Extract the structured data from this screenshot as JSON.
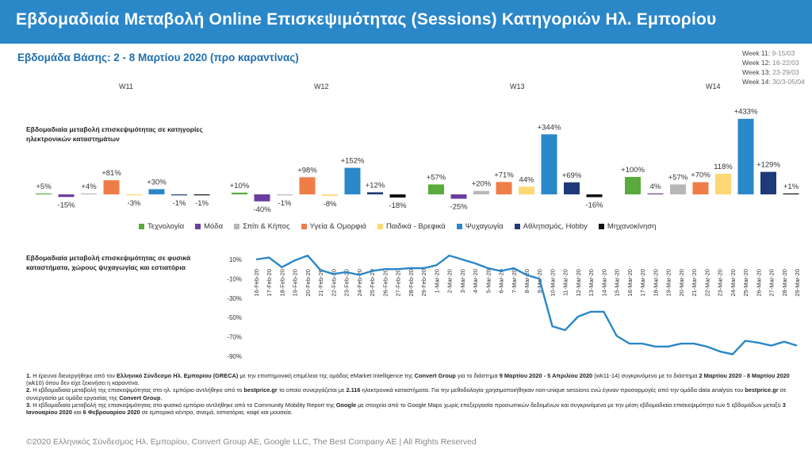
{
  "header": {
    "title": "Εβδομαδιαία Μεταβολή Online Επισκεψιμότητας (Sessions) Κατηγοριών Ηλ. Εμπορίου"
  },
  "base_week": "Εβδομάδα Βάσης: 2 - 8 Μαρτίου 2020 (προ καραντίνας)",
  "week_legend": [
    {
      "week": "Week 11:",
      "dates": "9-15/03"
    },
    {
      "week": "Week 12:",
      "dates": "16-22/03"
    },
    {
      "week": "Week 13:",
      "dates": "23-29/03"
    },
    {
      "week": "Week 14:",
      "dates": "30/3-05/04"
    }
  ],
  "colors": {
    "header_bg": "#2a87c8",
    "line": "#2a87c8"
  },
  "chart_data": [
    {
      "type": "bar",
      "title": "Εβδομαδιαία μεταβολή επισκεψιμότητας σε κατηγορίες ηλεκτρονικών καταστημάτων",
      "groups": [
        "W11",
        "W12",
        "W13",
        "W14"
      ],
      "series": [
        {
          "name": "Τεχνολογία",
          "color": "#5aaa3c",
          "values": [
            5,
            10,
            57,
            100
          ],
          "labels": [
            "+5%",
            "+10%",
            "+57%",
            "+100%"
          ]
        },
        {
          "name": "Μόδα",
          "color": "#6a3da0",
          "values": [
            -15,
            -40,
            -25,
            4
          ],
          "labels": [
            "-15%",
            "-40%",
            "-25%",
            "4%"
          ]
        },
        {
          "name": "Σπίτι & Κήπος",
          "color": "#b7b7b7",
          "values": [
            4,
            -1,
            20,
            57
          ],
          "labels": [
            "+4%",
            "-1%",
            "+20%",
            "+57%"
          ]
        },
        {
          "name": "Υγεία & Ομορφιά",
          "color": "#ef7d47",
          "values": [
            81,
            98,
            71,
            70
          ],
          "labels": [
            "+81%",
            "+98%",
            "+71%",
            "+70%"
          ]
        },
        {
          "name": "Παιδικά - Βρεφικά",
          "color": "#fdd773",
          "values": [
            -3,
            -8,
            44,
            118
          ],
          "labels": [
            "-3%",
            "-8%",
            "44%",
            "118%"
          ]
        },
        {
          "name": "Ψυχαγωγία",
          "color": "#2a87c8",
          "values": [
            30,
            152,
            344,
            433
          ],
          "labels": [
            "+30%",
            "+152%",
            "+344%",
            "+433%"
          ]
        },
        {
          "name": "Αθλητισμός, Hobby",
          "color": "#1f3a78",
          "values": [
            -1,
            12,
            69,
            129
          ],
          "labels": [
            "-1%",
            "+12%",
            "+69%",
            "+129%"
          ]
        },
        {
          "name": "Μηχανοκίνηση",
          "color": "#111111",
          "values": [
            -1,
            -18,
            -16,
            1
          ],
          "labels": [
            "-1%",
            "-18%",
            "-16%",
            "+1%"
          ]
        }
      ]
    },
    {
      "type": "line",
      "title": "Εβδομαδιαία μεταβολή επισκεψιμότητας σε φυσικά καταστήματα, χώρους ψυχαγωγίας και εστιατόρια",
      "x": [
        "16-Feb-20",
        "17-Feb-20",
        "18-Feb-20",
        "19-Feb-20",
        "20-Feb-20",
        "21-Feb-20",
        "22-Feb-20",
        "23-Feb-20",
        "24-Feb-20",
        "25-Feb-20",
        "26-Feb-20",
        "27-Feb-20",
        "28-Feb-20",
        "29-Feb-20",
        "1-Mar-20",
        "2-Mar-20",
        "3-Mar-20",
        "4-Mar-20",
        "5-Mar-20",
        "6-Mar-20",
        "7-Mar-20",
        "8-Mar-20",
        "9-Mar-20",
        "10-Mar-20",
        "11-Mar-20",
        "12-Mar-20",
        "13-Mar-20",
        "14-Mar-20",
        "15-Mar-20",
        "16-Mar-20",
        "17-Mar-20",
        "18-Mar-20",
        "19-Mar-20",
        "20-Mar-20",
        "21-Mar-20",
        "22-Mar-20",
        "23-Mar-20",
        "24-Mar-20",
        "25-Mar-20",
        "26-Mar-20",
        "27-Mar-20",
        "28-Mar-20",
        "29-Mar-20"
      ],
      "y": [
        10,
        12,
        2,
        9,
        14,
        -1,
        -5,
        -3,
        -6,
        -2,
        0,
        0,
        1,
        1,
        4,
        14,
        10,
        6,
        1,
        -2,
        1,
        -6,
        -10,
        -59,
        -63,
        -49,
        -44,
        -44,
        -69,
        -77,
        -77,
        -80,
        -80,
        -77,
        -77,
        -80,
        -85,
        -88,
        -74,
        -76,
        -79,
        -75,
        -79
      ],
      "yticks": [
        10,
        -10,
        -30,
        -50,
        -70,
        -90
      ],
      "ytick_labels": [
        "10%",
        "-10%",
        "-30%",
        "-50%",
        "-70%",
        "-90%"
      ],
      "ylim": [
        -95,
        15
      ]
    }
  ],
  "notes": [
    {
      "number": "1.",
      "parts": [
        {
          "t": " Η έρευνα διενεργήθηκε από τον "
        },
        {
          "b": "Ελληνικό Σύνδεσμο Ηλ. Εμπορίου (GRECA)"
        },
        {
          "t": " με την επιστημονική επιμέλεια της ομάδας eMarket Intelligence της "
        },
        {
          "b": "Convert Group"
        },
        {
          "t": " για το διάστημα "
        },
        {
          "b": "9 Μαρτίου 2020 - 5 Απριλίου 2020"
        },
        {
          "t": " (wk11-14) συγκρινόμενο με το διάστημα "
        },
        {
          "b": "2 Μαρτίου 2020 - 8 Μαρτίου 2020"
        },
        {
          "t": " (wk10) όπου δεν είχε ξεκινήσει η καραντίνα."
        }
      ]
    },
    {
      "number": "2.",
      "parts": [
        {
          "t": " Η εβδομαδιαία μεταβολή της επισκεψιμότητας στο ηλ. εμπόριο αντλήθηκε από το "
        },
        {
          "b": "bestprice.gr"
        },
        {
          "t": " το οποίο συνεργάζεται με "
        },
        {
          "b": "2.116"
        },
        {
          "t": " ηλεκτρονικά καταστήματα. Για την μεθοδολογία χρησιμοποιήθηκαν non-unique sessions ενώ έγιναν προσαρμογές από την ομάδα data analysis του "
        },
        {
          "b": "bestprice.gr"
        },
        {
          "t": " σε συνεργασία με ομάδα εργασίας της "
        },
        {
          "b": "Convert Group"
        },
        {
          "t": "."
        }
      ]
    },
    {
      "number": "3.",
      "parts": [
        {
          "t": " Η εβδομαδιαία μεταβολή της επισκεψιμότητας στο φυσικό εμπόριο αντλήθηκε από το Community Mobility Report της "
        },
        {
          "b": "Google"
        },
        {
          "t": " με στοιχεία από το Google Maps χωρίς επεξεργασία προσωπικών δεδομένων και συγκρινόμενα με την μέση εβδομαδιαία επισκεψιμότητα των 5 εβδομάδων μεταξύ "
        },
        {
          "b": "3 Ιανουαρίου 2020"
        },
        {
          "t": " και "
        },
        {
          "b": "6 Φεβρουαρίου 2020"
        },
        {
          "t": " σε εμπορικά κέντρα, σινεμά, εστιατόρια, καφέ και μουσεία."
        }
      ]
    }
  ],
  "footer": "©2020 Ελληνικός Σύνδεσμος Ηλ. Εμπορίου, Convert Group AE, Google LLC, The Best Company AE | All Rights Reserved"
}
